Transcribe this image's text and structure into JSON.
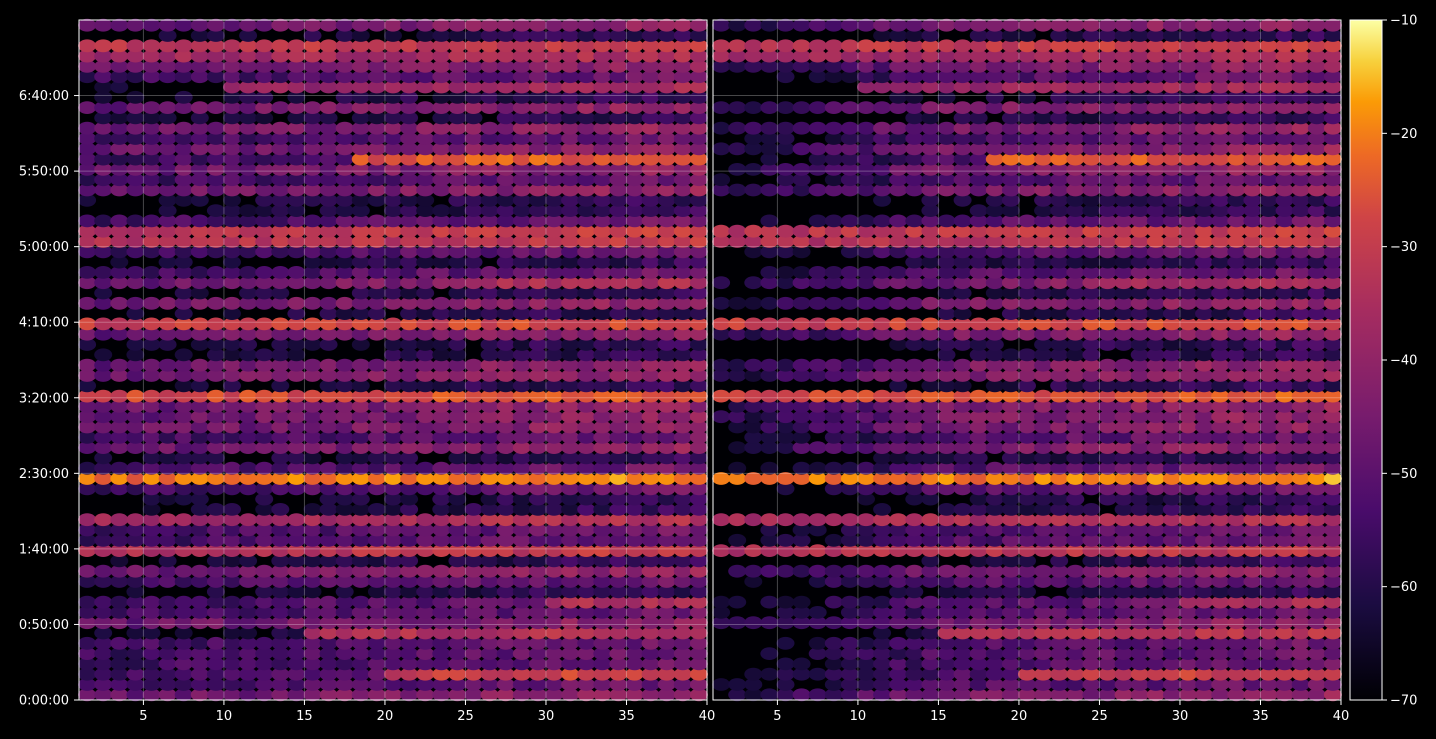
{
  "chart_data": {
    "type": "heatmap",
    "title": "",
    "xlabel": "",
    "ylabel": "",
    "colormap": "inferno",
    "background": "#000000",
    "panels": [
      {
        "name": "left",
        "xlim": [
          1,
          40
        ],
        "x_ticks": [
          5,
          10,
          15,
          20,
          25,
          30,
          35,
          40
        ]
      },
      {
        "name": "right",
        "xlim": [
          1,
          40
        ],
        "x_ticks": [
          5,
          10,
          15,
          20,
          25,
          30,
          35,
          40
        ]
      }
    ],
    "x_columns": 39,
    "y_rows": 66,
    "y_ticks": [
      "0:00:00",
      "0:50:00",
      "1:40:00",
      "2:30:00",
      "3:20:00",
      "4:10:00",
      "5:00:00",
      "5:50:00",
      "6:40:00"
    ],
    "y_tick_seconds": [
      0,
      3000,
      6000,
      9000,
      12000,
      15000,
      18000,
      21000,
      24000
    ],
    "ylim_seconds": [
      0,
      27000
    ],
    "colorbar": {
      "min": -70,
      "max": -10,
      "ticks": [
        "−70",
        "−60",
        "−50",
        "−40",
        "−30",
        "−20",
        "−10"
      ]
    },
    "grid": true,
    "hot_rows": [
      {
        "row": 2,
        "level": -32,
        "start_col": 20,
        "right": true
      },
      {
        "row": 6,
        "level": -36,
        "start_col": 15,
        "right": true
      },
      {
        "row": 9,
        "level": -38,
        "start_col": 30,
        "right": true
      },
      {
        "row": 14,
        "level": -34,
        "start_col": 1,
        "right": true
      },
      {
        "row": 17,
        "level": -37,
        "start_col": 1,
        "right": true
      },
      {
        "row": 21,
        "level": -22,
        "start_col": 1,
        "right": true
      },
      {
        "row": 29,
        "level": -28,
        "start_col": 1,
        "right": true
      },
      {
        "row": 31,
        "level": -45,
        "start_col": 10,
        "right": true
      },
      {
        "row": 36,
        "level": -30,
        "start_col": 1,
        "right": true
      },
      {
        "row": 40,
        "level": -38,
        "start_col": 25,
        "right": true
      },
      {
        "row": 44,
        "level": -34,
        "start_col": 1,
        "right": true
      },
      {
        "row": 45,
        "level": -33,
        "start_col": 1,
        "right": true
      },
      {
        "row": 52,
        "level": -27,
        "start_col": 18,
        "right": true
      },
      {
        "row": 59,
        "level": -40,
        "start_col": 10,
        "right": true
      },
      {
        "row": 62,
        "level": -38,
        "start_col": 1,
        "right": true
      },
      {
        "row": 63,
        "level": -32,
        "start_col": 1,
        "right": true
      }
    ]
  }
}
